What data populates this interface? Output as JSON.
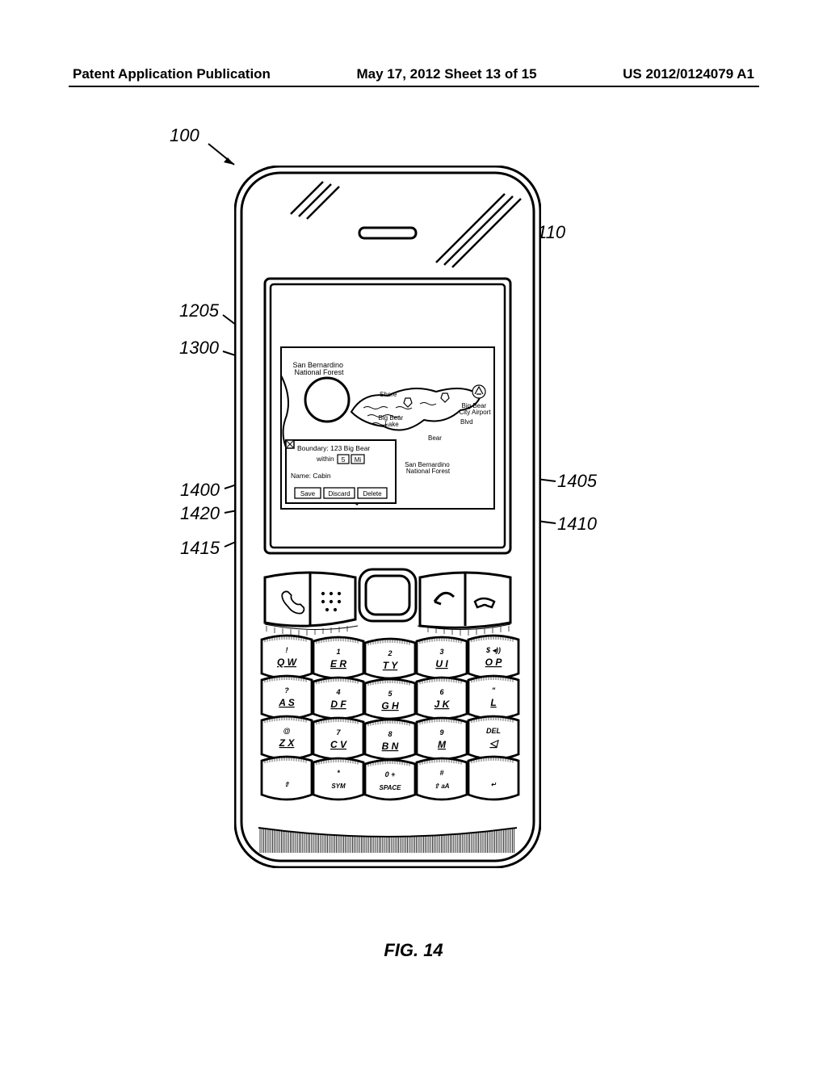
{
  "header": {
    "left": "Patent Application Publication",
    "mid": "May 17, 2012  Sheet 13 of 15",
    "right": "US 2012/0124079 A1"
  },
  "figlabel": "FIG. 14",
  "refs": {
    "r100": "100",
    "r110": "110",
    "r1205": "1205",
    "r1300": "1300",
    "r1400": "1400",
    "r1405": "1405",
    "r1410": "1410",
    "r1415": "1415",
    "r1420": "1420"
  },
  "map": {
    "label_forest_top": "San Bernardino\nNational Forest",
    "label_lake": "Big Bear\nLake",
    "label_airport": "Big Bear\nCity Airport",
    "label_forest_bot": "San Bernardino\nNational Forest",
    "label_shore": "Shore",
    "label_bear": "Bear",
    "label_blvd": "Blvd"
  },
  "dialog": {
    "boundary_label": "Boundary: 123 Big Bear",
    "within_label": "within",
    "within_val": "5",
    "unit_val": "Mi",
    "name_label": "Name: Cabin",
    "save": "Save",
    "discard": "Discard",
    "delete": "Delete"
  },
  "keyboard": {
    "rows": [
      [
        {
          "num": "!",
          "letters": "Q W"
        },
        {
          "num": "1",
          "letters": "E R"
        },
        {
          "num": "2",
          "letters": "T Y"
        },
        {
          "num": "3",
          "letters": "U I"
        },
        {
          "num": "$  ◂))",
          "letters": "O P"
        }
      ],
      [
        {
          "num": "?",
          "letters": "A S"
        },
        {
          "num": "4",
          "letters": "D F"
        },
        {
          "num": "5",
          "letters": "G H"
        },
        {
          "num": "6",
          "letters": "J K"
        },
        {
          "num": "\"",
          "letters": "L"
        }
      ],
      [
        {
          "num": "@",
          "letters": "Z X"
        },
        {
          "num": "7",
          "letters": "C V"
        },
        {
          "num": "8",
          "letters": "B N"
        },
        {
          "num": "9",
          "letters": "M"
        },
        {
          "num": "DEL",
          "letters": "◁"
        }
      ],
      [
        {
          "num": "",
          "letters": "⇧"
        },
        {
          "num": "*",
          "letters": "SYM"
        },
        {
          "num": "0 +",
          "letters": "SPACE"
        },
        {
          "num": "#",
          "letters": "⇧ aA"
        },
        {
          "num": "",
          "letters": "↵"
        }
      ]
    ]
  }
}
